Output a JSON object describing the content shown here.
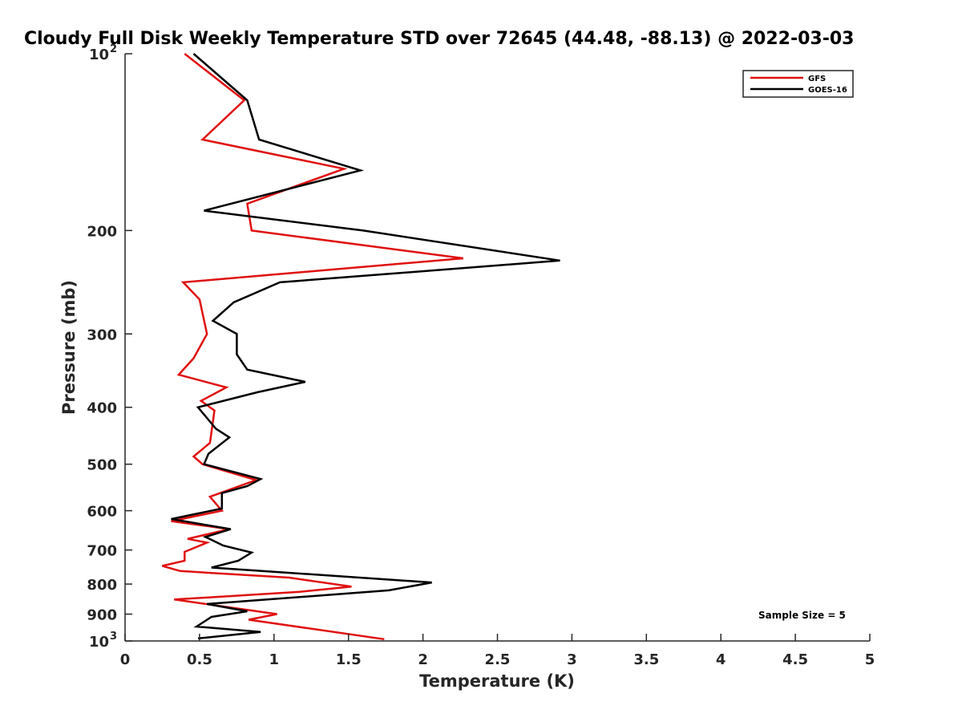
{
  "chart_data": {
    "type": "line",
    "title": "Cloudy Full Disk Weekly Temperature STD over 72645 (44.48, -88.13) @ 2022-03-03",
    "xlabel": "Temperature (K)",
    "ylabel": "Pressure (mb)",
    "xlim": [
      0,
      5
    ],
    "ylim": [
      100,
      1000
    ],
    "y_scale": "log",
    "y_reversed": true,
    "x_ticks": [
      "0",
      "0.5",
      "1",
      "1.5",
      "2",
      "2.5",
      "3",
      "3.5",
      "4",
      "4.5",
      "5"
    ],
    "y_ticks": [
      {
        "value": 100,
        "base": "10",
        "exp": "2"
      },
      {
        "value": 200,
        "label": "200"
      },
      {
        "value": 300,
        "label": "300"
      },
      {
        "value": 400,
        "label": "400"
      },
      {
        "value": 500,
        "label": "500"
      },
      {
        "value": 600,
        "label": "600"
      },
      {
        "value": 700,
        "label": "700"
      },
      {
        "value": 800,
        "label": "800"
      },
      {
        "value": 900,
        "label": "900"
      },
      {
        "value": 1000,
        "base": "10",
        "exp": "3"
      }
    ],
    "legend_position": "top-right",
    "annotation": "Sample Size = 5",
    "series": [
      {
        "name": "GFS",
        "color": "#e01010",
        "points": [
          [
            0.4,
            100
          ],
          [
            0.8,
            120
          ],
          [
            0.52,
            140
          ],
          [
            1.47,
            157
          ],
          [
            0.82,
            180
          ],
          [
            0.85,
            200
          ],
          [
            2.27,
            223
          ],
          [
            0.39,
            245
          ],
          [
            0.5,
            262
          ],
          [
            0.55,
            300
          ],
          [
            0.46,
            330
          ],
          [
            0.36,
            352
          ],
          [
            0.68,
            370
          ],
          [
            0.51,
            390
          ],
          [
            0.6,
            405
          ],
          [
            0.57,
            460
          ],
          [
            0.46,
            485
          ],
          [
            0.52,
            500
          ],
          [
            0.88,
            532
          ],
          [
            0.57,
            568
          ],
          [
            0.65,
            600
          ],
          [
            0.31,
            625
          ],
          [
            0.7,
            645
          ],
          [
            0.42,
            670
          ],
          [
            0.55,
            680
          ],
          [
            0.4,
            705
          ],
          [
            0.4,
            730
          ],
          [
            0.25,
            745
          ],
          [
            0.37,
            760
          ],
          [
            1.1,
            780
          ],
          [
            1.52,
            808
          ],
          [
            1.17,
            825
          ],
          [
            0.33,
            850
          ],
          [
            1.02,
            900
          ],
          [
            0.83,
            920
          ],
          [
            1.74,
            993
          ]
        ]
      },
      {
        "name": "GOES-16",
        "color": "#000000",
        "points": [
          [
            0.46,
            100
          ],
          [
            0.82,
            120
          ],
          [
            0.9,
            140
          ],
          [
            1.58,
            158
          ],
          [
            0.53,
            185
          ],
          [
            1.6,
            200
          ],
          [
            2.92,
            225
          ],
          [
            1.04,
            245
          ],
          [
            0.73,
            265
          ],
          [
            0.59,
            285
          ],
          [
            0.75,
            300
          ],
          [
            0.75,
            325
          ],
          [
            0.82,
            345
          ],
          [
            1.21,
            362
          ],
          [
            0.89,
            377
          ],
          [
            0.49,
            400
          ],
          [
            0.61,
            435
          ],
          [
            0.7,
            450
          ],
          [
            0.56,
            480
          ],
          [
            0.53,
            500
          ],
          [
            0.91,
            530
          ],
          [
            0.82,
            545
          ],
          [
            0.65,
            560
          ],
          [
            0.65,
            595
          ],
          [
            0.31,
            620
          ],
          [
            0.71,
            645
          ],
          [
            0.54,
            665
          ],
          [
            0.66,
            688
          ],
          [
            0.85,
            707
          ],
          [
            0.76,
            730
          ],
          [
            0.58,
            750
          ],
          [
            2.06,
            795
          ],
          [
            1.77,
            820
          ],
          [
            0.55,
            865
          ],
          [
            0.82,
            890
          ],
          [
            0.58,
            910
          ],
          [
            0.48,
            945
          ],
          [
            0.91,
            965
          ],
          [
            0.49,
            990
          ]
        ]
      }
    ]
  }
}
